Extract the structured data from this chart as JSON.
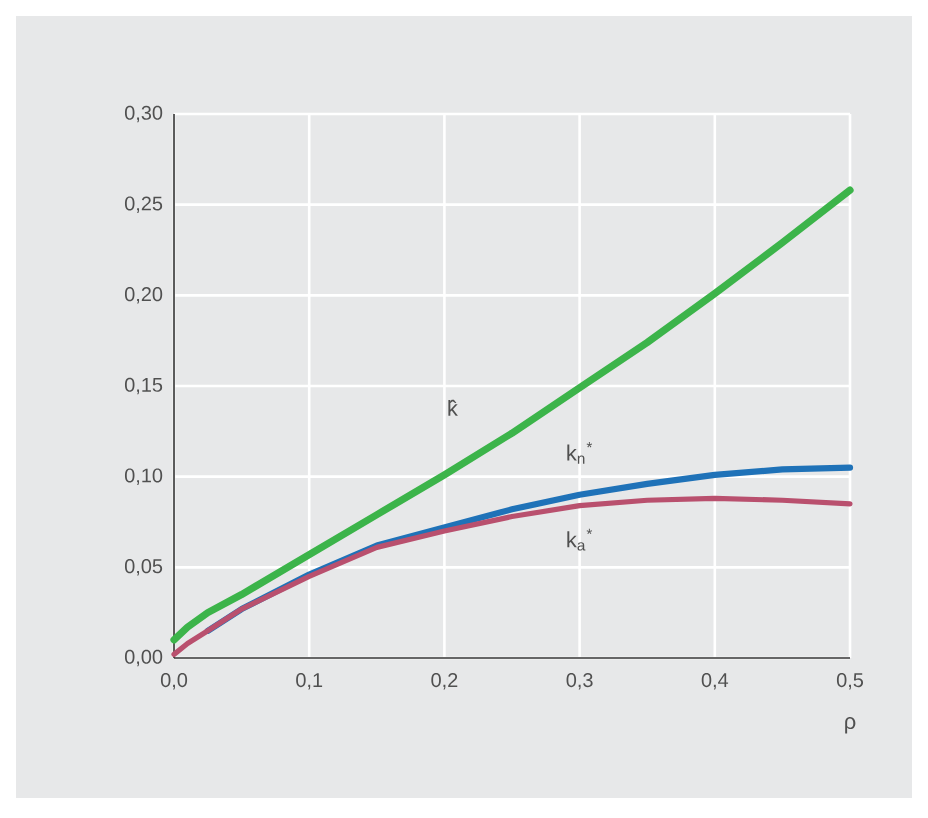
{
  "chart_data": {
    "type": "line",
    "xlabel": "ρ",
    "x": [
      0,
      0.01,
      0.025,
      0.05,
      0.1,
      0.15,
      0.2,
      0.25,
      0.3,
      0.35,
      0.4,
      0.45,
      0.5
    ],
    "series": [
      {
        "name": "k̂",
        "color": "#3cb44a",
        "values": [
          0.01,
          0.017,
          0.025,
          0.035,
          0.057,
          0.079,
          0.101,
          0.124,
          0.149,
          0.174,
          0.201,
          0.229,
          0.258
        ]
      },
      {
        "name": "k$_{n}$$^{*}$",
        "color": "#1f72b8",
        "values": [
          null,
          null,
          0.015,
          0.027,
          0.046,
          0.062,
          0.072,
          0.082,
          0.09,
          0.096,
          0.101,
          0.104,
          0.105
        ]
      },
      {
        "name": "k$_{a}$$^{*}$",
        "color": "#b9506e",
        "values": [
          0.002,
          0.008,
          0.015,
          0.027,
          0.045,
          0.061,
          0.07,
          0.078,
          0.084,
          0.087,
          0.088,
          0.087,
          0.085
        ]
      }
    ],
    "xlim": [
      0,
      0.5
    ],
    "ylim": [
      0,
      0.3
    ],
    "xticks": [
      {
        "value": 0,
        "label": "0,0"
      },
      {
        "value": 0.1,
        "label": "0,1"
      },
      {
        "value": 0.2,
        "label": "0,2"
      },
      {
        "value": 0.3,
        "label": "0,3"
      },
      {
        "value": 0.4,
        "label": "0,4"
      },
      {
        "value": 0.5,
        "label": "0,5"
      }
    ],
    "yticks": [
      {
        "value": 0,
        "label": "0,00"
      },
      {
        "value": 0.05,
        "label": "0,05"
      },
      {
        "value": 0.1,
        "label": "0,10"
      },
      {
        "value": 0.15,
        "label": "0,15"
      },
      {
        "value": 0.2,
        "label": "0,20"
      },
      {
        "value": 0.25,
        "label": "0,25"
      },
      {
        "value": 0.3,
        "label": "0,30"
      }
    ],
    "grid": true,
    "legend": false,
    "marker": "none",
    "line_style": "solid"
  }
}
